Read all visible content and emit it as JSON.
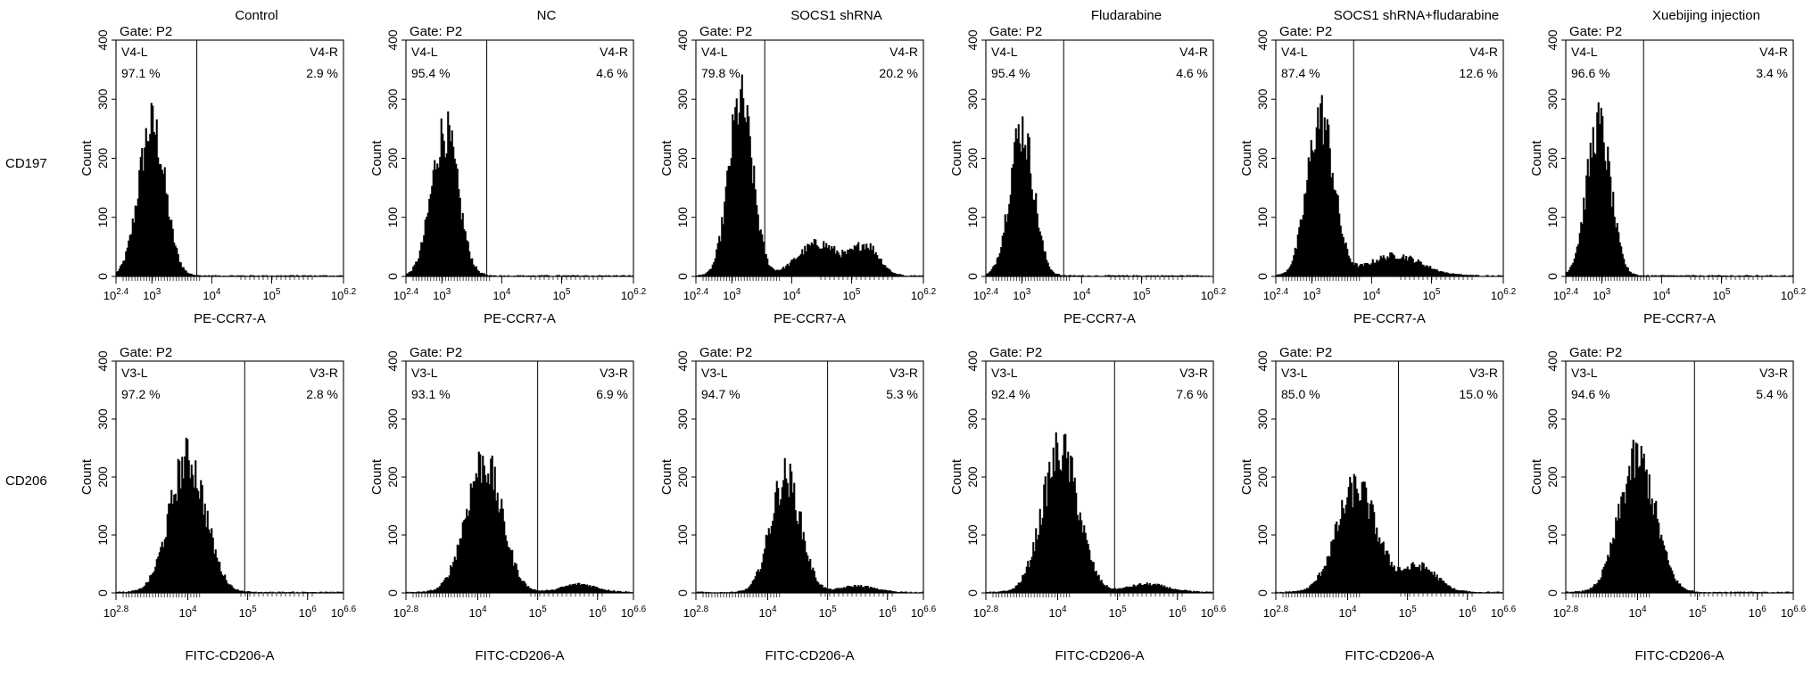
{
  "col_titles": [
    "Control",
    "NC",
    "SOCS1 shRNA",
    "Fludarabine",
    "SOCS1 shRNA+fludarabine",
    "Xuebijing injection"
  ],
  "row_labels": [
    "CD197",
    "CD206"
  ],
  "gate_label": "Gate: P2",
  "y_axis_label": "Count",
  "chart_data": [
    {
      "type": "histogram",
      "marker": "CD197",
      "xlabel": "PE-CCR7-A",
      "ylabel": "Count",
      "ylim": [
        0,
        400
      ],
      "yticks": [
        "0",
        "100",
        "200",
        "300",
        "400"
      ],
      "xscale": "log",
      "xlim_log10": [
        2.4,
        6.2
      ],
      "xticks": [
        {
          "base": "10",
          "exp": "2.4"
        },
        {
          "base": "10",
          "exp": "3"
        },
        {
          "base": "10",
          "exp": "4"
        },
        {
          "base": "10",
          "exp": "5"
        },
        {
          "base": "10",
          "exp": "6.2"
        }
      ],
      "xtick_log": [
        2.4,
        3,
        4,
        5,
        6.2
      ],
      "gate_left_label": "V4-L",
      "gate_right_label": "V4-R",
      "panels": [
        {
          "title": "Control",
          "gate_log": 3.75,
          "left_pct": "97.1 %",
          "right_pct": "2.9 %",
          "peaks": [
            {
              "c": 3.0,
              "s": 0.22,
              "h": 255
            }
          ]
        },
        {
          "title": "NC",
          "gate_log": 3.75,
          "left_pct": "95.4 %",
          "right_pct": "4.6 %",
          "peaks": [
            {
              "c": 3.05,
              "s": 0.22,
              "h": 245
            }
          ]
        },
        {
          "title": "SOCS1 shRNA",
          "gate_log": 3.55,
          "left_pct": "79.8 %",
          "right_pct": "20.2 %",
          "peaks": [
            {
              "c": 3.15,
              "s": 0.2,
              "h": 295
            },
            {
              "c": 4.45,
              "s": 0.35,
              "h": 55
            },
            {
              "c": 5.25,
              "s": 0.22,
              "h": 50
            }
          ]
        },
        {
          "title": "Fludarabine",
          "gate_log": 3.7,
          "left_pct": "95.4 %",
          "right_pct": "4.6 %",
          "peaks": [
            {
              "c": 3.0,
              "s": 0.2,
              "h": 250
            }
          ]
        },
        {
          "title": "SOCS1 shRNA+fludarabine",
          "gate_log": 3.7,
          "left_pct": "87.4 %",
          "right_pct": "12.6 %",
          "peaks": [
            {
              "c": 3.15,
              "s": 0.22,
              "h": 270
            },
            {
              "c": 4.4,
              "s": 0.45,
              "h": 35
            }
          ]
        },
        {
          "title": "Xuebijing injection",
          "gate_log": 3.7,
          "left_pct": "96.6 %",
          "right_pct": "3.4 %",
          "peaks": [
            {
              "c": 2.95,
              "s": 0.2,
              "h": 255
            }
          ]
        }
      ]
    },
    {
      "type": "histogram",
      "marker": "CD206",
      "xlabel": "FITC-CD206-A",
      "ylabel": "Count",
      "ylim": [
        0,
        400
      ],
      "yticks": [
        "0",
        "100",
        "200",
        "300",
        "400"
      ],
      "xscale": "log",
      "xlim_log10": [
        2.8,
        6.6
      ],
      "xticks": [
        {
          "base": "10",
          "exp": "2.8"
        },
        {
          "base": "10",
          "exp": "4"
        },
        {
          "base": "10",
          "exp": "5"
        },
        {
          "base": "10",
          "exp": "6"
        },
        {
          "base": "10",
          "exp": "6.6"
        }
      ],
      "xtick_log": [
        2.8,
        4,
        5,
        6,
        6.6
      ],
      "gate_left_label": "V3-L",
      "gate_right_label": "V3-R",
      "panels": [
        {
          "title": "Control",
          "gate_log": 4.95,
          "left_pct": "97.2 %",
          "right_pct": "2.8 %",
          "peaks": [
            {
              "c": 4.0,
              "s": 0.3,
              "h": 230
            }
          ]
        },
        {
          "title": "NC",
          "gate_log": 5.0,
          "left_pct": "93.1 %",
          "right_pct": "6.9 %",
          "peaks": [
            {
              "c": 4.1,
              "s": 0.3,
              "h": 225
            },
            {
              "c": 5.7,
              "s": 0.3,
              "h": 15
            }
          ]
        },
        {
          "title": "SOCS1 shRNA",
          "gate_log": 5.0,
          "left_pct": "94.7 %",
          "right_pct": "5.3 %",
          "peaks": [
            {
              "c": 4.3,
              "s": 0.25,
              "h": 200
            },
            {
              "c": 5.5,
              "s": 0.3,
              "h": 12
            }
          ]
        },
        {
          "title": "Fludarabine",
          "gate_log": 4.95,
          "left_pct": "92.4 %",
          "right_pct": "7.6 %",
          "peaks": [
            {
              "c": 4.05,
              "s": 0.3,
              "h": 245
            },
            {
              "c": 5.5,
              "s": 0.35,
              "h": 15
            }
          ]
        },
        {
          "title": "SOCS1 shRNA+fludarabine",
          "gate_log": 4.85,
          "left_pct": "85.0 %",
          "right_pct": "15.0 %",
          "peaks": [
            {
              "c": 4.15,
              "s": 0.33,
              "h": 180
            },
            {
              "c": 5.2,
              "s": 0.3,
              "h": 45
            }
          ]
        },
        {
          "title": "Xuebijing injection",
          "gate_log": 4.95,
          "left_pct": "94.6 %",
          "right_pct": "5.4 %",
          "peaks": [
            {
              "c": 4.0,
              "s": 0.3,
              "h": 230
            }
          ]
        }
      ]
    }
  ]
}
